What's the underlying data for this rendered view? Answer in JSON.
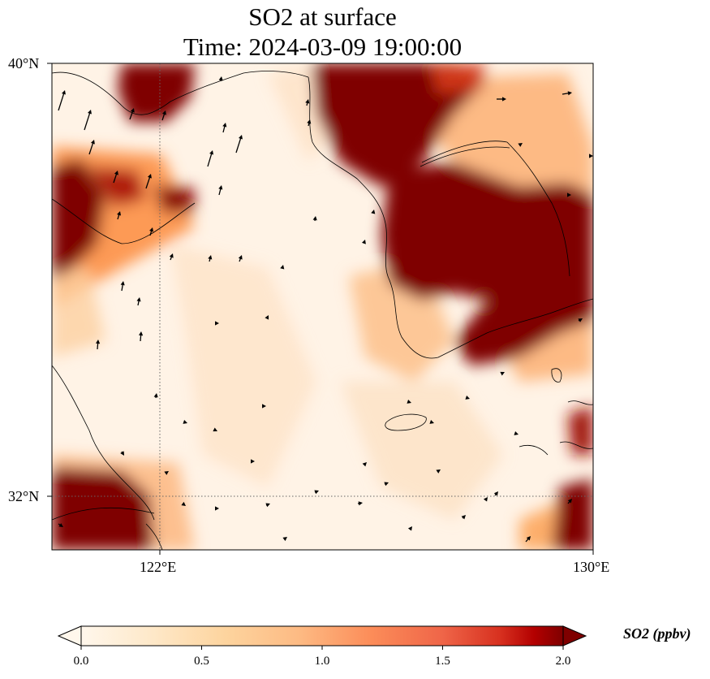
{
  "title": {
    "line1": "SO2 at surface",
    "line2": "Time: 2024-03-09 19:00:00"
  },
  "map": {
    "extent": {
      "lon": [
        119,
        130
      ],
      "lat": [
        31,
        40
      ]
    },
    "lat_ticks": [
      {
        "value": 40,
        "label": "40°N"
      },
      {
        "value": 32,
        "label": "32°N"
      }
    ],
    "lon_ticks": [
      {
        "value": 122,
        "label": "122°E"
      },
      {
        "value": 130,
        "label": "130°E"
      }
    ],
    "gridlines": {
      "lon": [
        122
      ],
      "lat": [
        32
      ],
      "style": "dotted"
    },
    "field_colors": [
      "#fff5eb",
      "#fee6ce",
      "#fdd0a2",
      "#fdae6b",
      "#fd8d3c",
      "#f16913",
      "#d94801",
      "#a63603",
      "#7f0000"
    ]
  },
  "colorbar": {
    "label": "SO2 (ppbv)",
    "ticks": [
      "0.0",
      "0.5",
      "1.0",
      "1.5",
      "2.0"
    ],
    "range": [
      0,
      2
    ],
    "extend": "both",
    "colormap": "OrRd"
  }
}
